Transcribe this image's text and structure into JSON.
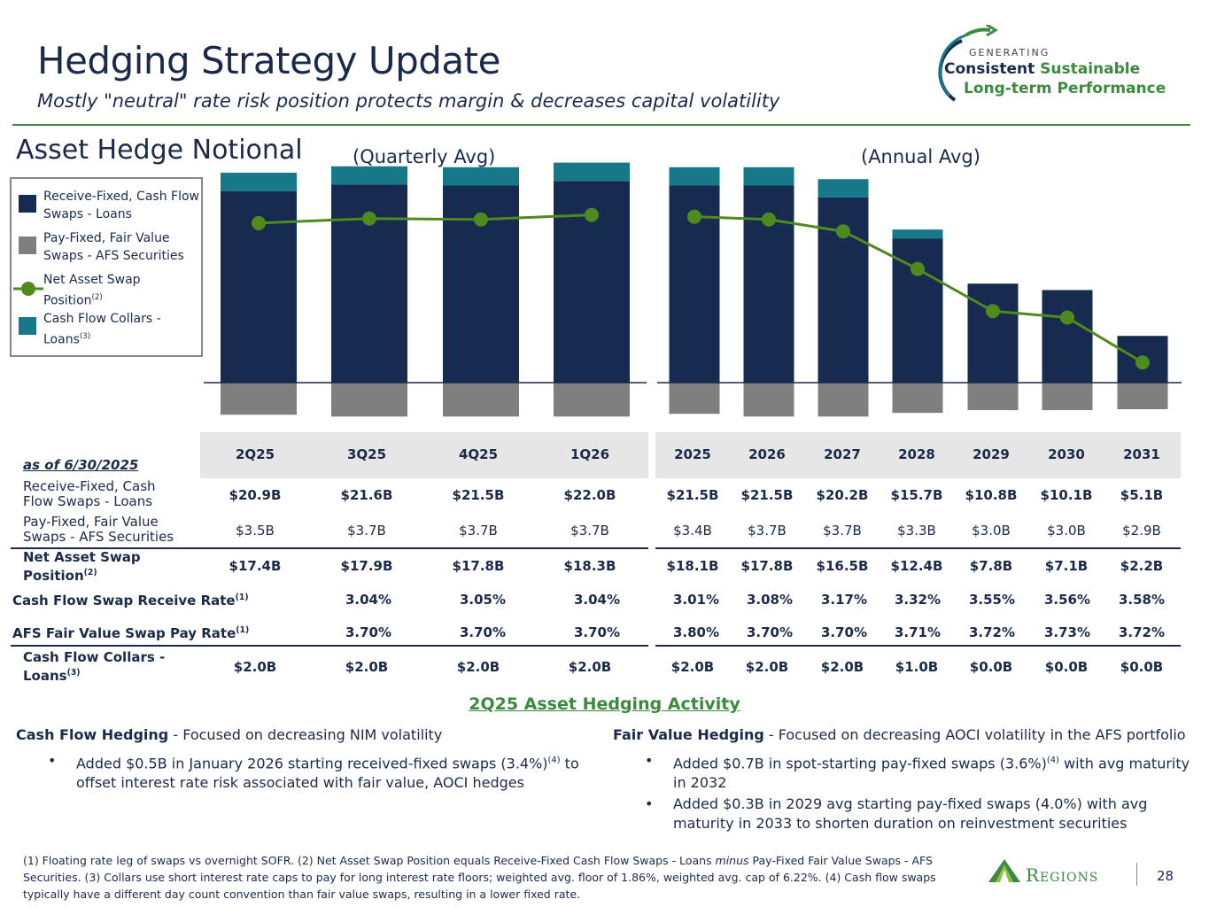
{
  "header": {
    "title": "Hedging Strategy Update",
    "subtitle": "Mostly \"neutral\" rate risk position protects margin & decreases capital volatility",
    "logo_line1": "GENERATING",
    "logo_line2a": "Consistent",
    "logo_line2b": "Sustainable",
    "logo_line3": "Long-term Performance"
  },
  "colors": {
    "navy": "#172a4f",
    "gray": "#7f7f7f",
    "teal": "#17788a",
    "green": "#4e8a1e",
    "accent_green": "#3c8a3e"
  },
  "section_title": "Asset Hedge Notional",
  "period_labels": {
    "quarterly": "(Quarterly Avg)",
    "annual": "(Annual Avg)"
  },
  "legend": {
    "receive_fixed": "Receive-Fixed, Cash Flow Swaps - Loans",
    "pay_fixed": "Pay-Fixed, Fair Value Swaps - AFS Securities",
    "net_asset": "Net Asset Swap Position",
    "net_asset_sup": "(2)",
    "collars": "Cash Flow Collars - Loans",
    "collars_sup": "(3)"
  },
  "chart_data": {
    "type": "bar",
    "categories": [
      "2Q25",
      "3Q25",
      "4Q25",
      "1Q26",
      "2025",
      "2026",
      "2027",
      "2028",
      "2029",
      "2030",
      "2031"
    ],
    "series": [
      {
        "name": "Receive-Fixed, Cash Flow Swaps - Loans",
        "type": "bar",
        "unit": "$B",
        "values": [
          20.9,
          21.6,
          21.5,
          22.0,
          21.5,
          21.5,
          20.2,
          15.7,
          10.8,
          10.1,
          5.1
        ]
      },
      {
        "name": "Cash Flow Collars - Loans",
        "type": "bar",
        "stacked_on": "Receive-Fixed, Cash Flow Swaps - Loans",
        "unit": "$B",
        "values": [
          2.0,
          2.0,
          2.0,
          2.0,
          2.0,
          2.0,
          2.0,
          1.0,
          0.0,
          0.0,
          0.0
        ]
      },
      {
        "name": "Pay-Fixed, Fair Value Swaps - AFS Securities",
        "type": "bar",
        "direction": "negative",
        "unit": "$B",
        "values": [
          -3.5,
          -3.7,
          -3.7,
          -3.7,
          -3.4,
          -3.7,
          -3.7,
          -3.3,
          -3.0,
          -3.0,
          -2.9
        ]
      },
      {
        "name": "Net Asset Swap Position",
        "type": "line",
        "unit": "$B",
        "values": [
          17.4,
          17.9,
          17.8,
          18.3,
          18.1,
          17.8,
          16.5,
          12.4,
          7.8,
          7.1,
          2.2
        ]
      }
    ],
    "groups": [
      {
        "label": "(Quarterly Avg)",
        "categories": [
          "2Q25",
          "3Q25",
          "4Q25",
          "1Q26"
        ]
      },
      {
        "label": "(Annual Avg)",
        "categories": [
          "2025",
          "2026",
          "2027",
          "2028",
          "2029",
          "2030",
          "2031"
        ]
      }
    ],
    "ylim": [
      -4,
      24
    ],
    "grid": false,
    "legend": "left"
  },
  "table": {
    "as_of": "as of 6/30/2025",
    "columns": [
      "2Q25",
      "3Q25",
      "4Q25",
      "1Q26",
      "2025",
      "2026",
      "2027",
      "2028",
      "2029",
      "2030",
      "2031"
    ],
    "rows": [
      {
        "label": "Receive-Fixed, Cash Flow Swaps - Loans",
        "sup": "",
        "bold": true,
        "values": [
          "$20.9B",
          "$21.6B",
          "$21.5B",
          "$22.0B",
          "$21.5B",
          "$21.5B",
          "$20.2B",
          "$15.7B",
          "$10.8B",
          "$10.1B",
          "$5.1B"
        ]
      },
      {
        "label": "Pay-Fixed, Fair Value Swaps - AFS Securities",
        "sup": "",
        "bold": false,
        "values": [
          "$3.5B",
          "$3.7B",
          "$3.7B",
          "$3.7B",
          "$3.4B",
          "$3.7B",
          "$3.7B",
          "$3.3B",
          "$3.0B",
          "$3.0B",
          "$2.9B"
        ]
      },
      {
        "label": "Net Asset Swap Position",
        "sup": "(2)",
        "bold": true,
        "values": [
          "$17.4B",
          "$17.9B",
          "$17.8B",
          "$18.3B",
          "$18.1B",
          "$17.8B",
          "$16.5B",
          "$12.4B",
          "$7.8B",
          "$7.1B",
          "$2.2B"
        ]
      },
      {
        "label": "Cash Flow Swap Receive Rate",
        "sup": "(1)",
        "bold": true,
        "values": [
          "",
          "3.04%",
          "3.05%",
          "3.04%",
          "3.01%",
          "3.08%",
          "3.17%",
          "3.32%",
          "3.55%",
          "3.56%",
          "3.58%"
        ]
      },
      {
        "label": "AFS Fair Value Swap Pay Rate",
        "sup": "(1)",
        "bold": true,
        "values": [
          "",
          "3.70%",
          "3.70%",
          "3.70%",
          "3.80%",
          "3.70%",
          "3.70%",
          "3.71%",
          "3.72%",
          "3.73%",
          "3.72%"
        ]
      },
      {
        "label": "Cash Flow Collars - Loans",
        "sup": "(3)",
        "bold": true,
        "values": [
          "$2.0B",
          "$2.0B",
          "$2.0B",
          "$2.0B",
          "$2.0B",
          "$2.0B",
          "$2.0B",
          "$1.0B",
          "$0.0B",
          "$0.0B",
          "$0.0B"
        ]
      }
    ]
  },
  "activity": {
    "title": "2Q25 Asset Hedging Activity",
    "left": {
      "head_bold": "Cash Flow Hedging",
      "head_rest": " - Focused on decreasing NIM volatility",
      "bullets": [
        {
          "text": "Added $0.5B in January 2026 starting received-fixed swaps (3.4%)",
          "sup": "(4)",
          "text2": " to offset interest rate risk associated with fair value, AOCI hedges"
        }
      ]
    },
    "right": {
      "head_bold": "Fair Value Hedging",
      "head_rest": " - Focused on decreasing AOCI volatility in the AFS portfolio",
      "bullets": [
        {
          "text": "Added $0.7B in spot-starting pay-fixed swaps (3.6%)",
          "sup": "(4)",
          "text2": " with avg maturity in 2032"
        },
        {
          "text": "Added $0.3B in 2029 avg starting pay-fixed swaps (4.0%) with avg maturity in 2033 to shorten duration on reinvestment securities",
          "sup": "",
          "text2": ""
        }
      ]
    }
  },
  "footnote": {
    "part1": "(1) Floating rate leg of swaps vs overnight SOFR. (2) Net Asset Swap Position equals Receive-Fixed Cash Flow Swaps - Loans ",
    "italic": "minus",
    "part2": " Pay-Fixed Fair Value Swaps - AFS Securities.  (3) Collars use short interest rate caps to pay for long interest rate floors; weighted avg. floor of 1.86%, weighted avg. cap of 6.22%. (4) Cash flow swaps typically have a different day count convention than fair value swaps, resulting in a lower fixed rate."
  },
  "brand": {
    "name": "Regions",
    "page": "28"
  }
}
